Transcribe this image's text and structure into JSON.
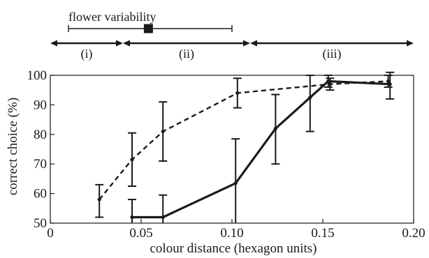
{
  "chart_data": {
    "type": "line",
    "xlabel": "colour distance (hexagon units)",
    "ylabel": "correct choice (%)",
    "xlim": [
      0,
      0.2
    ],
    "ylim": [
      50,
      100
    ],
    "x_ticks": [
      {
        "v": 0,
        "label": "0"
      },
      {
        "v": 0.05,
        "label": "0.05"
      },
      {
        "v": 0.1,
        "label": "0.10"
      },
      {
        "v": 0.15,
        "label": "0.15"
      },
      {
        "v": 0.2,
        "label": "0.20"
      }
    ],
    "y_ticks": [
      {
        "v": 50,
        "label": "50"
      },
      {
        "v": 60,
        "label": "60"
      },
      {
        "v": 70,
        "label": "70"
      },
      {
        "v": 80,
        "label": "80"
      },
      {
        "v": 90,
        "label": "90"
      },
      {
        "v": 100,
        "label": "100"
      }
    ],
    "grid": false,
    "series": [
      {
        "style": "dashed",
        "color": "#1a1a1a",
        "points": [
          {
            "x": 0.027,
            "y": 58,
            "lo": 52,
            "hi": 63
          },
          {
            "x": 0.045,
            "y": 71.5,
            "lo": 62.5,
            "hi": 80.5
          },
          {
            "x": 0.062,
            "y": 81,
            "lo": 71,
            "hi": 91
          },
          {
            "x": 0.103,
            "y": 94,
            "lo": 89,
            "hi": 99
          },
          {
            "x": 0.154,
            "y": 97,
            "lo": 95,
            "hi": 99
          },
          {
            "x": 0.186,
            "y": 98,
            "lo": 96,
            "hi": 100
          }
        ]
      },
      {
        "style": "solid",
        "color": "#1a1a1a",
        "points": [
          {
            "x": 0.045,
            "y": 52,
            "lo": 46,
            "hi": 58
          },
          {
            "x": 0.062,
            "y": 52,
            "lo": 44,
            "hi": 59.5
          },
          {
            "x": 0.102,
            "y": 63.5,
            "lo": 48,
            "hi": 78.5
          },
          {
            "x": 0.124,
            "y": 82,
            "lo": 70,
            "hi": 93.5
          },
          {
            "x": 0.143,
            "y": 92.5,
            "lo": 81,
            "hi": 100
          },
          {
            "x": 0.153,
            "y": 98,
            "lo": 96,
            "hi": 100
          },
          {
            "x": 0.187,
            "y": 97,
            "lo": 92,
            "hi": 101
          }
        ]
      }
    ],
    "flower_variability": {
      "label": "flower variability",
      "range": [
        0.01,
        0.1
      ],
      "marker": 0.054
    },
    "ranges": [
      {
        "label": "(i)",
        "from": 0.0,
        "to": 0.04
      },
      {
        "label": "(ii)",
        "from": 0.04,
        "to": 0.11
      },
      {
        "label": "(iii)",
        "from": 0.11,
        "to": 0.2
      }
    ]
  }
}
